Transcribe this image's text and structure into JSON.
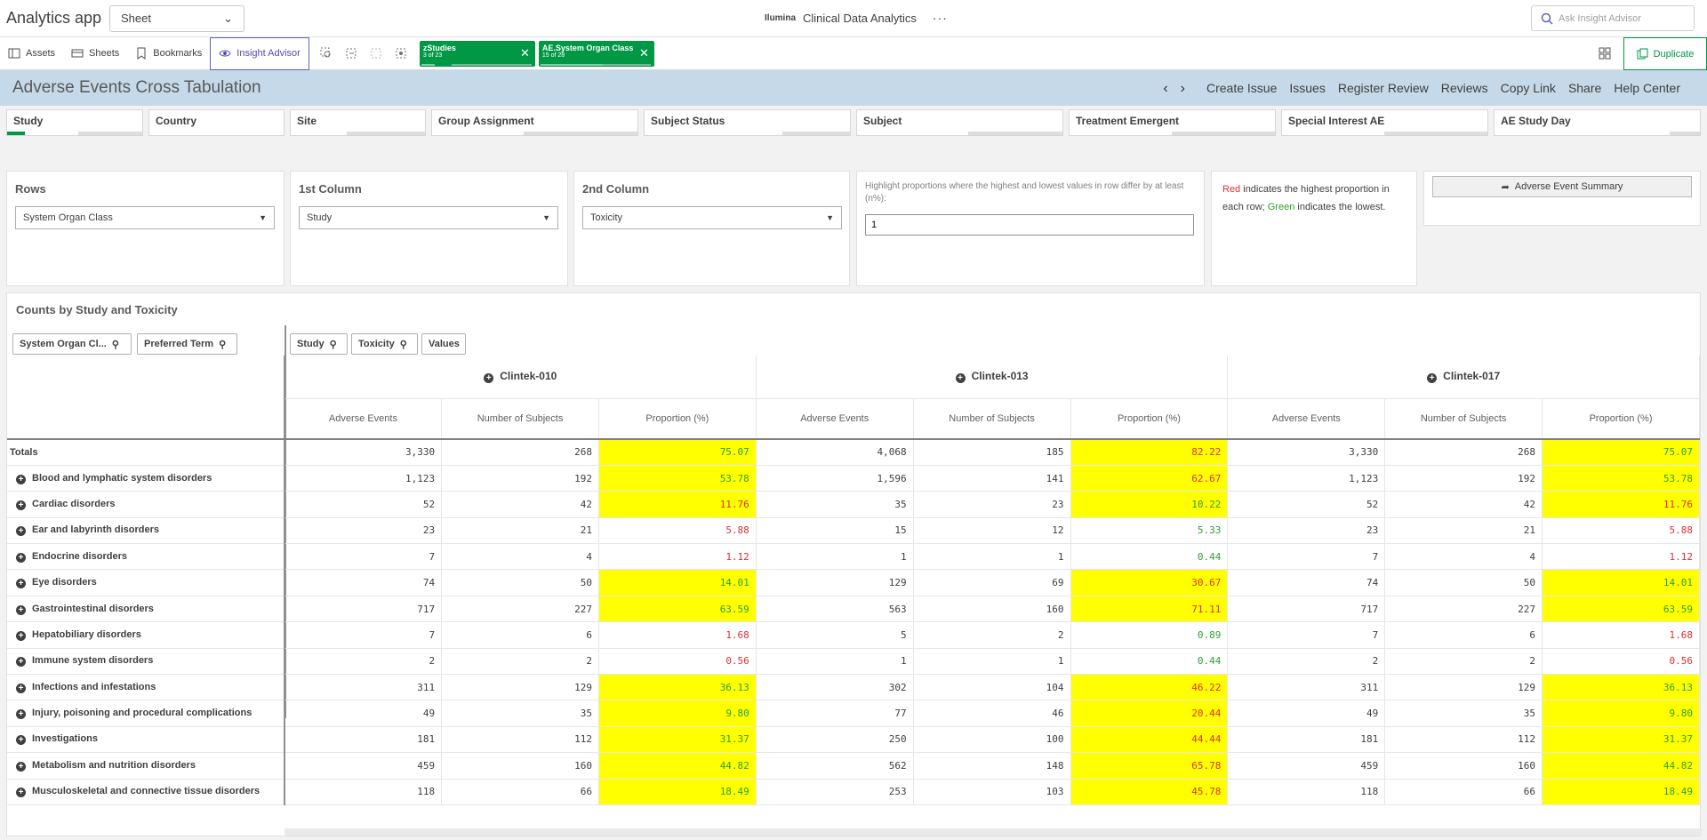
{
  "app": {
    "title": "Analytics app",
    "sheet_select": "Sheet",
    "brand": "Ilumina",
    "center_title": "Clinical Data Analytics",
    "more": "···",
    "ask_placeholder": "Ask Insight Advisor"
  },
  "toolbar": {
    "assets": "Assets",
    "sheets": "Sheets",
    "bookmarks": "Bookmarks",
    "insight": "Insight Advisor",
    "duplicate": "Duplicate",
    "chips": [
      {
        "field": "zStudies",
        "count": "3 of 23"
      },
      {
        "field": "AE.System Organ Class",
        "count": "15 of 28"
      }
    ]
  },
  "sheet": {
    "title": "Adverse Events Cross Tabulation",
    "actions": [
      "Create Issue",
      "Issues",
      "Register Review",
      "Reviews",
      "Copy Link",
      "Share",
      "Help Center"
    ]
  },
  "filters": [
    "Study",
    "Country",
    "Site",
    "Group Assignment",
    "Subject Status",
    "Subject",
    "Treatment Emergent",
    "Special Interest AE",
    "AE Study Day"
  ],
  "controls": {
    "rows_label": "Rows",
    "rows_value": "System Organ Class",
    "col1_label": "1st Column",
    "col1_value": "Study",
    "col2_label": "2nd Column",
    "col2_value": "Toxicity",
    "highlight_text": "Highlight proportions where the highest and lowest values in row differ by at least (n%):",
    "highlight_value": "1",
    "note_red": "Red",
    "note_mid": " indicates the highest proportion in each row; ",
    "note_green": "Green",
    "note_end": " indicates the lowest.",
    "summary_button": "Adverse Event Summary"
  },
  "colors": {
    "accent": "#009845",
    "highlight": "#ffff00",
    "red": "#e03030",
    "green": "#30a030"
  },
  "table": {
    "title": "Counts by Study and Toxicity",
    "dim_chips": [
      "System Organ Cl...",
      "Preferred Term"
    ],
    "col_chips": [
      "Study",
      "Toxicity",
      "Values"
    ],
    "studies": [
      "Clintek-010",
      "Clintek-013",
      "Clintek-017"
    ],
    "measures": [
      "Adverse Events",
      "Number of Subjects",
      "Proportion (%)"
    ],
    "totals_label": "Totals",
    "totals": [
      {
        "v": [
          "3,330",
          "268",
          "75.07"
        ],
        "c": "green",
        "h": true
      },
      {
        "v": [
          "4,068",
          "185",
          "82.22"
        ],
        "c": "red",
        "h": true
      },
      {
        "v": [
          "3,330",
          "268",
          "75.07"
        ],
        "c": "green",
        "h": true
      }
    ],
    "rows": [
      {
        "label": "Blood and lymphatic system disorders",
        "cells": [
          {
            "v": [
              "1,123",
              "192",
              "53.78"
            ],
            "c": "green",
            "h": true
          },
          {
            "v": [
              "1,596",
              "141",
              "62.67"
            ],
            "c": "red",
            "h": true
          },
          {
            "v": [
              "1,123",
              "192",
              "53.78"
            ],
            "c": "green",
            "h": true
          }
        ]
      },
      {
        "label": "Cardiac disorders",
        "cells": [
          {
            "v": [
              "52",
              "42",
              "11.76"
            ],
            "c": "red",
            "h": true
          },
          {
            "v": [
              "35",
              "23",
              "10.22"
            ],
            "c": "green",
            "h": true
          },
          {
            "v": [
              "52",
              "42",
              "11.76"
            ],
            "c": "red",
            "h": true
          }
        ]
      },
      {
        "label": "Ear and labyrinth disorders",
        "cells": [
          {
            "v": [
              "23",
              "21",
              "5.88"
            ],
            "c": "red",
            "h": false
          },
          {
            "v": [
              "15",
              "12",
              "5.33"
            ],
            "c": "green",
            "h": false
          },
          {
            "v": [
              "23",
              "21",
              "5.88"
            ],
            "c": "red",
            "h": false
          }
        ]
      },
      {
        "label": "Endocrine disorders",
        "cells": [
          {
            "v": [
              "7",
              "4",
              "1.12"
            ],
            "c": "red",
            "h": false
          },
          {
            "v": [
              "1",
              "1",
              "0.44"
            ],
            "c": "green",
            "h": false
          },
          {
            "v": [
              "7",
              "4",
              "1.12"
            ],
            "c": "red",
            "h": false
          }
        ]
      },
      {
        "label": "Eye disorders",
        "cells": [
          {
            "v": [
              "74",
              "50",
              "14.01"
            ],
            "c": "green",
            "h": true
          },
          {
            "v": [
              "129",
              "69",
              "30.67"
            ],
            "c": "red",
            "h": true
          },
          {
            "v": [
              "74",
              "50",
              "14.01"
            ],
            "c": "green",
            "h": true
          }
        ]
      },
      {
        "label": "Gastrointestinal disorders",
        "cells": [
          {
            "v": [
              "717",
              "227",
              "63.59"
            ],
            "c": "green",
            "h": true
          },
          {
            "v": [
              "563",
              "160",
              "71.11"
            ],
            "c": "red",
            "h": true
          },
          {
            "v": [
              "717",
              "227",
              "63.59"
            ],
            "c": "green",
            "h": true
          }
        ]
      },
      {
        "label": "Hepatobiliary disorders",
        "cells": [
          {
            "v": [
              "7",
              "6",
              "1.68"
            ],
            "c": "red",
            "h": false
          },
          {
            "v": [
              "5",
              "2",
              "0.89"
            ],
            "c": "green",
            "h": false
          },
          {
            "v": [
              "7",
              "6",
              "1.68"
            ],
            "c": "red",
            "h": false
          }
        ]
      },
      {
        "label": "Immune system disorders",
        "cells": [
          {
            "v": [
              "2",
              "2",
              "0.56"
            ],
            "c": "red",
            "h": false
          },
          {
            "v": [
              "1",
              "1",
              "0.44"
            ],
            "c": "green",
            "h": false
          },
          {
            "v": [
              "2",
              "2",
              "0.56"
            ],
            "c": "red",
            "h": false
          }
        ]
      },
      {
        "label": "Infections and infestations",
        "cells": [
          {
            "v": [
              "311",
              "129",
              "36.13"
            ],
            "c": "green",
            "h": true
          },
          {
            "v": [
              "302",
              "104",
              "46.22"
            ],
            "c": "red",
            "h": true
          },
          {
            "v": [
              "311",
              "129",
              "36.13"
            ],
            "c": "green",
            "h": true
          }
        ]
      },
      {
        "label": "Injury, poisoning and procedural complications",
        "cells": [
          {
            "v": [
              "49",
              "35",
              "9.80"
            ],
            "c": "green",
            "h": true
          },
          {
            "v": [
              "77",
              "46",
              "20.44"
            ],
            "c": "red",
            "h": true
          },
          {
            "v": [
              "49",
              "35",
              "9.80"
            ],
            "c": "green",
            "h": true
          }
        ]
      },
      {
        "label": "Investigations",
        "cells": [
          {
            "v": [
              "181",
              "112",
              "31.37"
            ],
            "c": "green",
            "h": true
          },
          {
            "v": [
              "250",
              "100",
              "44.44"
            ],
            "c": "red",
            "h": true
          },
          {
            "v": [
              "181",
              "112",
              "31.37"
            ],
            "c": "green",
            "h": true
          }
        ]
      },
      {
        "label": "Metabolism and nutrition disorders",
        "cells": [
          {
            "v": [
              "459",
              "160",
              "44.82"
            ],
            "c": "green",
            "h": true
          },
          {
            "v": [
              "562",
              "148",
              "65.78"
            ],
            "c": "red",
            "h": true
          },
          {
            "v": [
              "459",
              "160",
              "44.82"
            ],
            "c": "green",
            "h": true
          }
        ]
      },
      {
        "label": "Musculoskeletal and connective tissue disorders",
        "cells": [
          {
            "v": [
              "118",
              "66",
              "18.49"
            ],
            "c": "green",
            "h": true
          },
          {
            "v": [
              "253",
              "103",
              "45.78"
            ],
            "c": "red",
            "h": true
          },
          {
            "v": [
              "118",
              "66",
              "18.49"
            ],
            "c": "green",
            "h": true
          }
        ]
      }
    ]
  }
}
